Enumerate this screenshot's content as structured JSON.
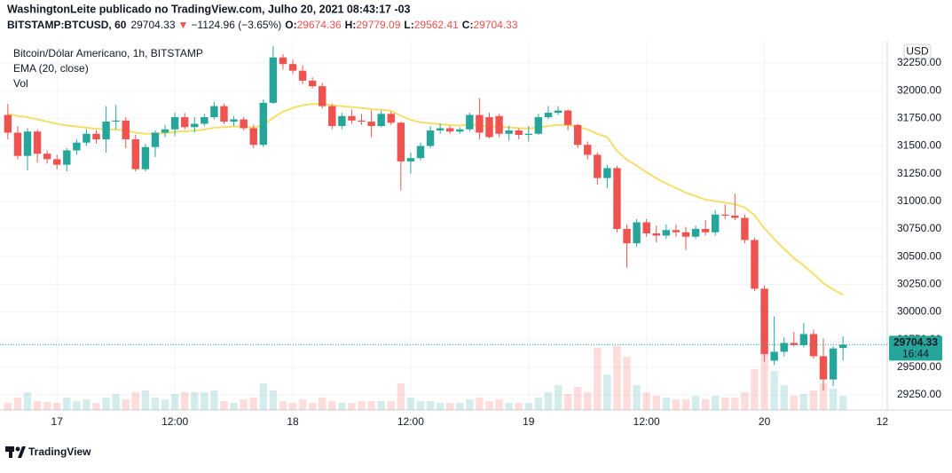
{
  "header": {
    "author_line": "WashingtonLeite publicado no TradingView.com, Julho 20, 2021 08:43:17 -03",
    "symbol": "BITSTAMP:BTCUSD, 60",
    "arrow": "▼",
    "change": "−1124.96 (−3.65%)",
    "ohlc_labels": [
      "O:",
      "H:",
      "L:",
      "C:"
    ],
    "countdown": "16:44",
    "currency": "USD"
  },
  "chart_data": {
    "type": "candlestick",
    "series": [
      {
        "name": "Bitcoin/Dólar Americano, 1h, BITSTAMP",
        "up_color": "#26a69a",
        "down_color": "#ef5350",
        "open": [
          31780,
          31620,
          31410,
          31630,
          31430,
          31380,
          31330,
          31460,
          31530,
          31610,
          31560,
          31720,
          31730,
          31560,
          31290,
          31490,
          31620,
          31650,
          31760,
          31670,
          31700,
          31760,
          31860,
          31720,
          31740,
          31660,
          31510,
          31890,
          32300,
          32240,
          32180,
          32090,
          32040,
          31860,
          31680,
          31770,
          31730,
          31720,
          31680,
          31790,
          31710,
          31360,
          31390,
          31500,
          31640,
          31660,
          31630,
          31650,
          31780,
          31760,
          31770,
          31610,
          31640,
          31600,
          31610,
          31760,
          31800,
          31820,
          31690,
          31510,
          31420,
          31210,
          31300,
          30750,
          30620,
          30810,
          30710,
          30690,
          30740,
          30720,
          30680,
          30750,
          30720,
          30880,
          30870,
          30850,
          30650,
          30210,
          29560,
          29640,
          29720,
          29700,
          29800,
          29600,
          29390,
          29674.36
        ],
        "high": [
          31880,
          31680,
          31660,
          31650,
          31460,
          31420,
          31480,
          31560,
          31650,
          31640,
          31860,
          31870,
          31760,
          31600,
          31520,
          31640,
          31690,
          31800,
          31800,
          31760,
          31790,
          31900,
          31880,
          31770,
          31760,
          31690,
          31920,
          32400,
          32330,
          32280,
          32230,
          32120,
          32070,
          31880,
          31800,
          31830,
          31790,
          31820,
          31820,
          31810,
          31720,
          31440,
          31530,
          31680,
          31700,
          31680,
          31670,
          31800,
          31930,
          31800,
          31790,
          31680,
          31660,
          31680,
          31790,
          31860,
          31860,
          31830,
          31700,
          31540,
          31440,
          31330,
          31320,
          30790,
          30840,
          30840,
          30780,
          30790,
          30790,
          30770,
          30780,
          30830,
          30920,
          30970,
          31070,
          30880,
          30670,
          30240,
          29960,
          29770,
          29820,
          29900,
          29840,
          29760,
          29690,
          29779.09
        ],
        "low": [
          31560,
          31380,
          31280,
          31350,
          31340,
          31290,
          31270,
          31420,
          31500,
          31520,
          31440,
          31650,
          31480,
          31270,
          31270,
          31400,
          31580,
          31590,
          31650,
          31620,
          31680,
          31740,
          31700,
          31680,
          31640,
          31480,
          31490,
          31880,
          32190,
          32150,
          32060,
          32020,
          31840,
          31650,
          31650,
          31700,
          31690,
          31580,
          31670,
          31690,
          31100,
          31250,
          31370,
          31480,
          31610,
          31610,
          31610,
          31630,
          31560,
          31570,
          31580,
          31550,
          31560,
          31540,
          31600,
          31740,
          31780,
          31640,
          31480,
          31380,
          31150,
          31120,
          30720,
          30400,
          30590,
          30680,
          30630,
          30660,
          30680,
          30560,
          30660,
          30690,
          30690,
          30840,
          30830,
          30620,
          30190,
          29550,
          29520,
          29600,
          29690,
          29680,
          29580,
          29290,
          29330,
          29562.41
        ],
        "close": [
          31620,
          31410,
          31630,
          31430,
          31380,
          31330,
          31460,
          31530,
          31610,
          31560,
          31720,
          31730,
          31560,
          31290,
          31490,
          31620,
          31650,
          31760,
          31670,
          31700,
          31760,
          31860,
          31720,
          31740,
          31660,
          31510,
          31890,
          32300,
          32240,
          32180,
          32090,
          32040,
          31860,
          31680,
          31770,
          31730,
          31720,
          31680,
          31790,
          31710,
          31360,
          31390,
          31500,
          31640,
          31660,
          31630,
          31650,
          31780,
          31620,
          31580,
          31610,
          31640,
          31600,
          31610,
          31760,
          31800,
          31820,
          31690,
          31510,
          31420,
          31210,
          31300,
          30750,
          30620,
          30810,
          30710,
          30690,
          30740,
          30720,
          30680,
          30750,
          30720,
          30880,
          30870,
          30850,
          30650,
          30210,
          29620,
          29640,
          29720,
          29700,
          29800,
          29600,
          29390,
          29670,
          29704.33
        ]
      },
      {
        "name": "EMA (20, close)",
        "color": "#f5df6a",
        "values": [
          31790,
          31770,
          31760,
          31740,
          31720,
          31700,
          31685,
          31675,
          31665,
          31655,
          31650,
          31648,
          31640,
          31620,
          31610,
          31612,
          31615,
          31628,
          31632,
          31638,
          31648,
          31665,
          31670,
          31676,
          31675,
          31664,
          31690,
          31754,
          31810,
          31844,
          31868,
          31880,
          31880,
          31866,
          31860,
          31852,
          31843,
          31832,
          31828,
          31817,
          31772,
          31736,
          31713,
          31705,
          31696,
          31688,
          31684,
          31693,
          31687,
          31678,
          31672,
          31668,
          31661,
          31658,
          31667,
          31680,
          31690,
          31690,
          31673,
          31650,
          31609,
          31580,
          31455,
          31376,
          31322,
          31262,
          31207,
          31161,
          31120,
          31078,
          31047,
          31015,
          31001,
          30987,
          30974,
          30944,
          30874,
          30754,
          30660,
          30570,
          30487,
          30420,
          30345,
          30259,
          30203,
          30155
        ]
      },
      {
        "name": "Vol",
        "up_color": "rgba(38,166,154,0.2)",
        "down_color": "rgba(239,83,80,0.2)",
        "values": [
          8,
          14,
          20,
          10,
          9,
          8,
          14,
          10,
          12,
          8,
          14,
          18,
          12,
          20,
          22,
          14,
          12,
          18,
          20,
          20,
          20,
          22,
          10,
          8,
          12,
          14,
          30,
          22,
          10,
          8,
          12,
          8,
          14,
          10,
          8,
          8,
          10,
          10,
          10,
          10,
          30,
          14,
          10,
          10,
          8,
          8,
          8,
          12,
          14,
          10,
          12,
          8,
          8,
          8,
          14,
          20,
          28,
          18,
          26,
          20,
          70,
          40,
          72,
          60,
          28,
          20,
          16,
          14,
          12,
          12,
          16,
          12,
          16,
          14,
          14,
          20,
          46,
          66,
          44,
          28,
          16,
          18,
          22,
          30,
          24,
          16
        ]
      }
    ],
    "ylim": [
      29114,
      32450
    ],
    "yticks": [
      {
        "value": 29250,
        "label": "29250.00"
      },
      {
        "value": 29500,
        "label": "29500.00"
      },
      {
        "value": 29750,
        "label": "29750.00"
      },
      {
        "value": 30000,
        "label": "30000.00"
      },
      {
        "value": 30250,
        "label": "30250.00"
      },
      {
        "value": 30500,
        "label": "30500.00"
      },
      {
        "value": 30750,
        "label": "30750.00"
      },
      {
        "value": 31000,
        "label": "31000.00"
      },
      {
        "value": 31250,
        "label": "31250.00"
      },
      {
        "value": 31500,
        "label": "31500.00"
      },
      {
        "value": 31750,
        "label": "31750.00"
      },
      {
        "value": 32000,
        "label": "32000.00"
      },
      {
        "value": 32250,
        "label": "32250.00"
      }
    ],
    "xlim": [
      -0.8,
      89.5
    ],
    "xticks": [
      {
        "value": 5,
        "label": "17"
      },
      {
        "value": 17,
        "label": "12:00"
      },
      {
        "value": 29,
        "label": "18"
      },
      {
        "value": 41,
        "label": "12:00"
      },
      {
        "value": 53,
        "label": "19"
      },
      {
        "value": 65,
        "label": "12:00"
      },
      {
        "value": 77,
        "label": "20"
      },
      {
        "value": 89,
        "label": "12"
      }
    ],
    "grid": true
  },
  "footer": {
    "brand": "TradingView"
  }
}
